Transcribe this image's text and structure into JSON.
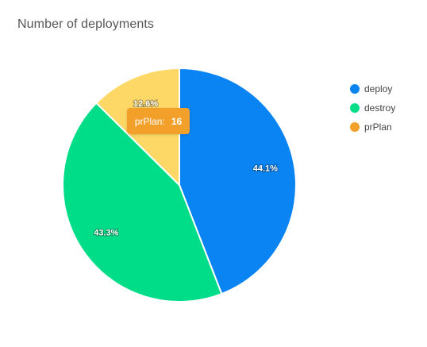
{
  "chart_data": {
    "type": "pie",
    "title": "Number of deployments",
    "slices": [
      {
        "name": "deploy",
        "percent": 44.1,
        "label": "44.1%",
        "color": "#0a84f2"
      },
      {
        "name": "destroy",
        "percent": 43.3,
        "label": "43.3%",
        "color": "#00dd88"
      },
      {
        "name": "prPlan",
        "percent": 12.6,
        "label": "12.6%",
        "color": "#fdd866"
      }
    ],
    "legend": {
      "placement": "right",
      "items": [
        {
          "name": "deploy",
          "color": "#0a84f2"
        },
        {
          "name": "destroy",
          "color": "#00dd88"
        },
        {
          "name": "prPlan",
          "color": "#f2a02a"
        }
      ]
    },
    "tooltip": {
      "series": "prPlan:",
      "value": "16",
      "color": "#f2a02a"
    }
  }
}
